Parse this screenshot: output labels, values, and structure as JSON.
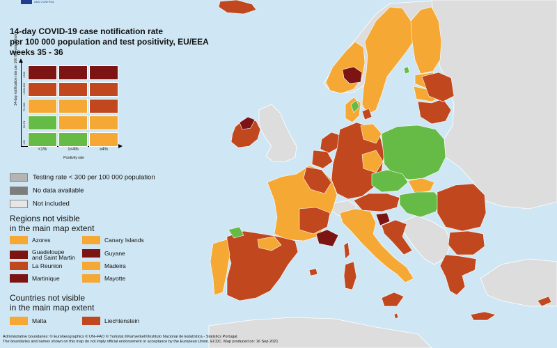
{
  "colors": {
    "sea": "#cfe7f4",
    "outside": "#dddddd",
    "green": "#66bb46",
    "orange": "#f5a833",
    "red": "#c1471f",
    "dark_red": "#7c1414",
    "testing_low": "#b4b4b4",
    "no_data": "#7d7d7d",
    "not_included": "#e6e6e6"
  },
  "logo": {
    "text": "AND CONTROL"
  },
  "title": "14-day COVID-19 case notification rate\nper 100 000 population and test positivity, EU/EEA\nweeks 35 - 36",
  "matrix": {
    "y_axis_label": "14-day notification rate per 100 000 population",
    "x_axis_label": "Positivity rate",
    "x_ticks": [
      "<1%",
      "1<4%",
      "≥4%"
    ],
    "y_ticks": [
      ">500",
      ">200-499",
      "75-200",
      "50-74",
      "<50"
    ],
    "cells": [
      [
        "dark_red",
        "dark_red",
        "dark_red"
      ],
      [
        "red",
        "red",
        "red"
      ],
      [
        "orange",
        "orange",
        "red"
      ],
      [
        "green",
        "orange",
        "orange"
      ],
      [
        "green",
        "green",
        "orange"
      ]
    ]
  },
  "legend": [
    {
      "color": "testing_low",
      "label": "Testing rate < 300 per 100 000 population"
    },
    {
      "color": "no_data",
      "label": "No data available"
    },
    {
      "color": "not_included",
      "label": "Not included"
    }
  ],
  "regions_title": "Regions not visible\nin the main map extent",
  "regions": [
    {
      "color": "orange",
      "label": "Azores"
    },
    {
      "color": "orange",
      "label": "Canary Islands"
    },
    {
      "color": "dark_red",
      "label": "Guadeloupe\nand Saint Martin"
    },
    {
      "color": "dark_red",
      "label": "Guyane"
    },
    {
      "color": "red",
      "label": "La Reunion"
    },
    {
      "color": "orange",
      "label": "Madeira"
    },
    {
      "color": "dark_red",
      "label": "Martinique"
    },
    {
      "color": "orange",
      "label": "Mayotte"
    }
  ],
  "countries_title": "Countries not visible\nin the main map extent",
  "countries": [
    {
      "color": "orange",
      "label": "Malta"
    },
    {
      "color": "red",
      "label": "Liechtenstein"
    }
  ],
  "footer": "Administrative boundaries: © EuroGeographics © UN–FAO © Turkstat.©Kartverket©Instituto Nacional de Estatística - Statistics Portugal.\nThe boundaries and names shown on this map do not imply official endorsement or acceptance by the European Union. ECDC. Map produced on: 16 Sep 2021"
}
